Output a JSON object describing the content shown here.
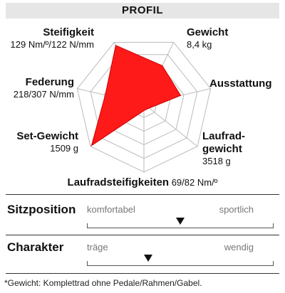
{
  "header": {
    "title": "PROFIL"
  },
  "radar": {
    "fill_color": "#ff1a1a",
    "grid_color": "#bbbbbb",
    "levels": 5,
    "axes": [
      {
        "key": "steifigkeit",
        "value": 0.95
      },
      {
        "key": "gewicht",
        "value": 0.62
      },
      {
        "key": "ausstattung",
        "value": 0.55
      },
      {
        "key": "laufradgewicht",
        "value": 0.1
      },
      {
        "key": "laufradsteifigkeiten",
        "value": 0.1
      },
      {
        "key": "set_gewicht",
        "value": 0.98
      },
      {
        "key": "federung",
        "value": 0.58
      }
    ]
  },
  "labels": {
    "steifigkeit": {
      "title": "Steifigkeit",
      "value": "129 Nm/º/122 N/mm"
    },
    "gewicht": {
      "title": "Gewicht",
      "value": "8,4 kg"
    },
    "ausstattung": {
      "title": "Ausstattung"
    },
    "federung": {
      "title": "Federung",
      "value": "218/307 N/mm"
    },
    "set_gewicht": {
      "title": "Set-Gewicht",
      "value": "1509 g"
    },
    "laufradgewicht": {
      "title_line1": "Laufrad-",
      "title_line2": "gewicht",
      "value": "3518 g"
    },
    "laufradsteifigkeiten": {
      "title": "Laufradsteifigkeiten",
      "value": "69/82 Nm/º"
    }
  },
  "sitzposition": {
    "title": "Sitzposition",
    "left_label": "komfortabel",
    "right_label": "sportlich",
    "position": 0.5
  },
  "charakter": {
    "title": "Charakter",
    "left_label": "träge",
    "right_label": "wendig",
    "position": 0.33
  },
  "footnote": "*Gewicht: Komplettrad ohne Pedale/Rahmen/Gabel."
}
